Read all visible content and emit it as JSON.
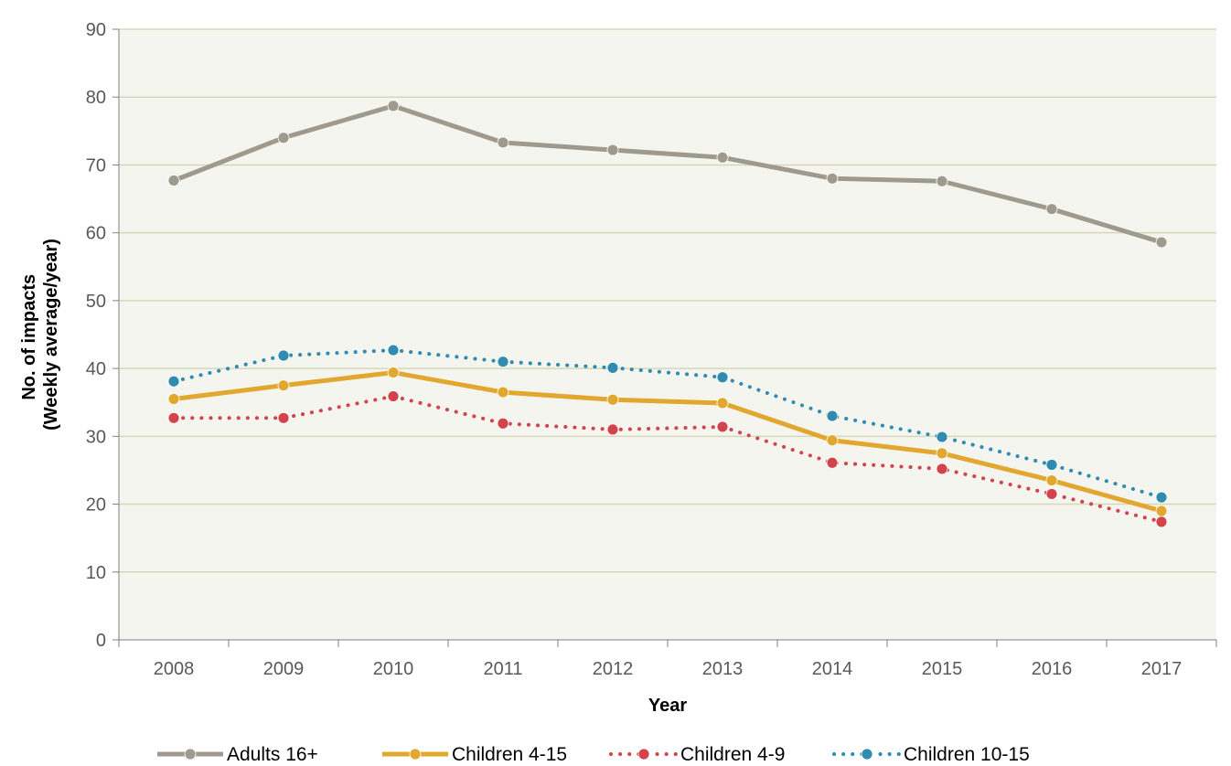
{
  "chart_data": {
    "type": "line",
    "title": "",
    "xlabel": "Year",
    "ylabel": [
      "No. of impacts",
      "(Weekly average/year)"
    ],
    "x": [
      "2008",
      "2009",
      "2010",
      "2011",
      "2012",
      "2013",
      "2014",
      "2015",
      "2016",
      "2017"
    ],
    "ylim": [
      0,
      90
    ],
    "yticks": [
      0,
      10,
      20,
      30,
      40,
      50,
      60,
      70,
      80,
      90
    ],
    "grid": "horizontal",
    "plot_background": "#f5f5ef",
    "gridline_color": "#d5d8b8",
    "legend_position": "bottom",
    "series": [
      {
        "name": "Adults 16+",
        "values": [
          67.7,
          74.0,
          78.7,
          73.3,
          72.2,
          71.1,
          68.0,
          67.6,
          63.5,
          58.6
        ],
        "color": "#9e9a8e",
        "style": "solid"
      },
      {
        "name": "Children 4-15",
        "values": [
          35.5,
          37.5,
          39.4,
          36.5,
          35.4,
          34.9,
          29.4,
          27.5,
          23.5,
          19.0
        ],
        "color": "#e2a72e",
        "style": "solid"
      },
      {
        "name": "Children 4-9",
        "values": [
          32.7,
          32.7,
          35.9,
          31.9,
          31.0,
          31.4,
          26.1,
          25.2,
          21.5,
          17.4
        ],
        "color": "#d2434b",
        "style": "dotted"
      },
      {
        "name": "Children 10-15",
        "values": [
          38.1,
          41.9,
          42.7,
          41.0,
          40.1,
          38.7,
          33.0,
          29.9,
          25.8,
          21.0
        ],
        "color": "#2f8bb0",
        "style": "dotted"
      }
    ]
  }
}
